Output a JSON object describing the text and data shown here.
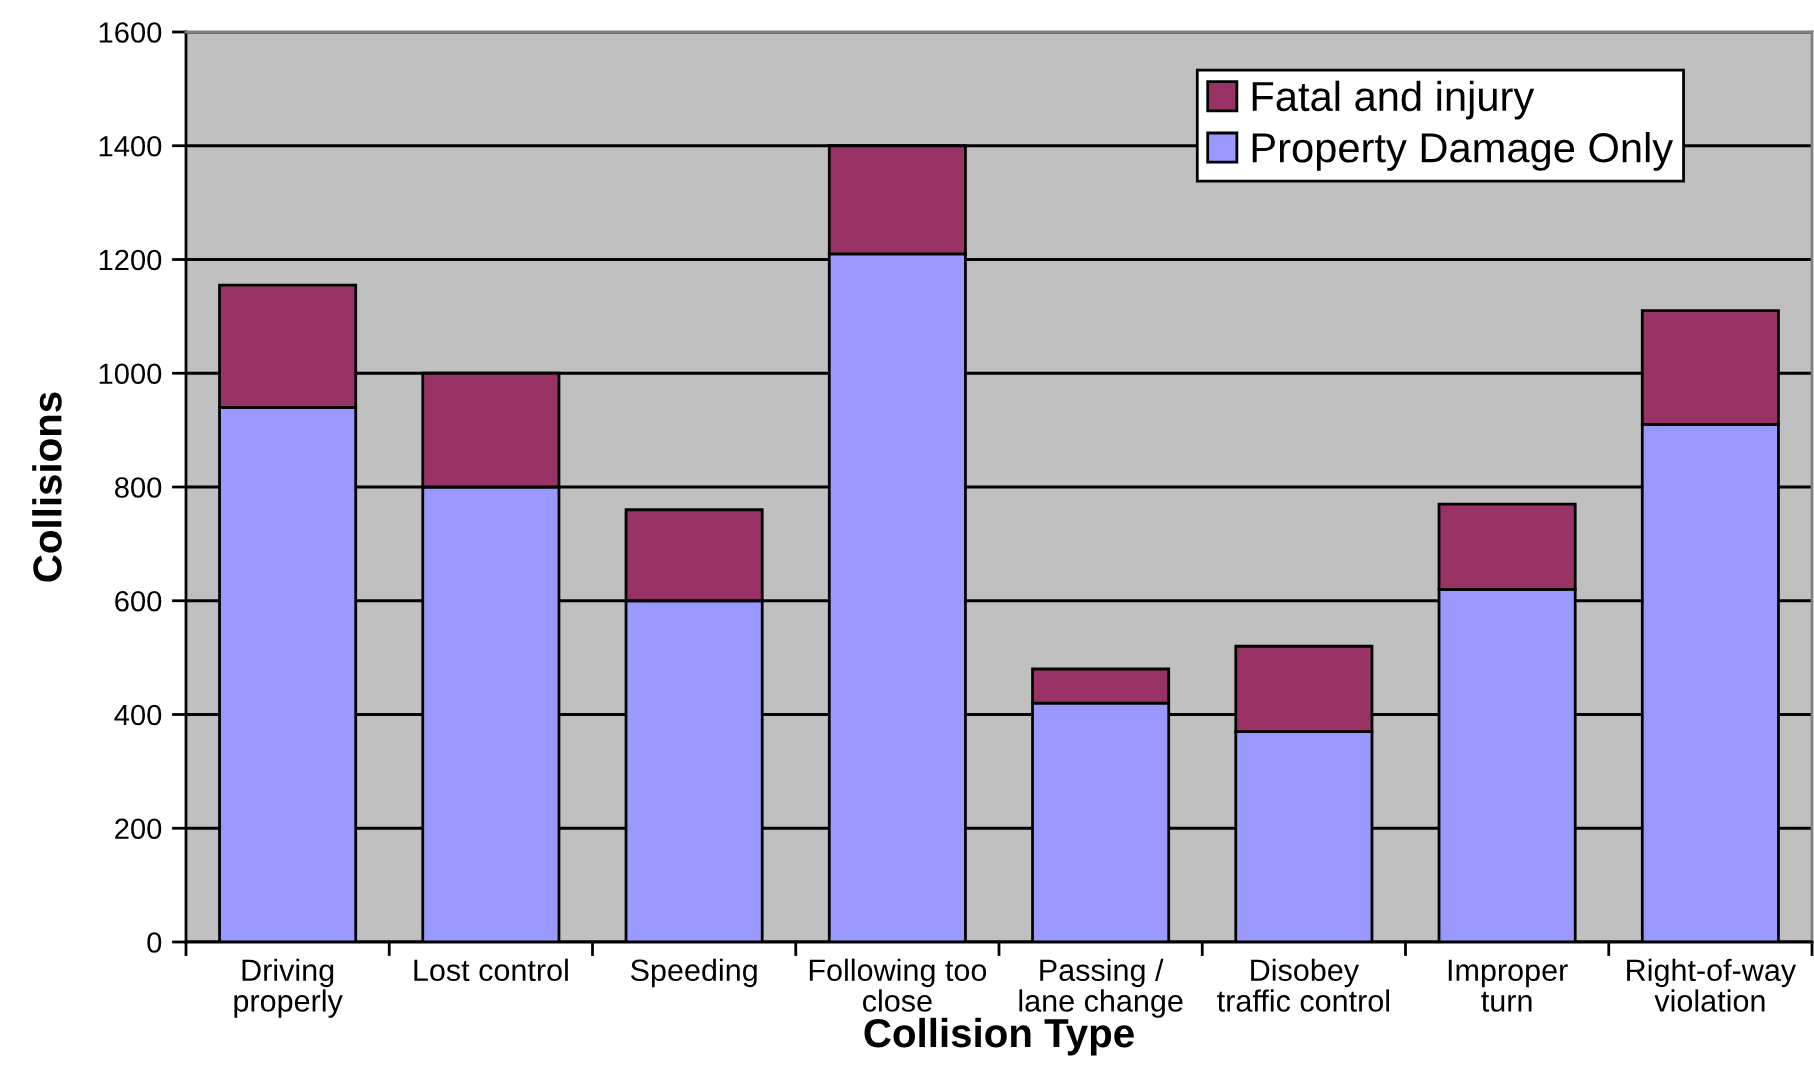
{
  "chart_data": {
    "type": "bar",
    "stacked": true,
    "xlabel": "Collision Type",
    "ylabel": "Collisions",
    "categories": [
      "Driving\nproperly",
      "Lost control",
      "Speeding",
      "Following too\nclose",
      "Passing /\nlane change",
      "Disobey\ntraffic control",
      "Improper\nturn",
      "Right-of-way\nviolation"
    ],
    "series": [
      {
        "name": "Property Damage Only",
        "color": "#9999ff",
        "values": [
          940,
          800,
          600,
          1210,
          420,
          370,
          620,
          910
        ]
      },
      {
        "name": "Fatal and injury",
        "color": "#993366",
        "values": [
          215,
          200,
          160,
          190,
          60,
          150,
          150,
          200
        ]
      }
    ],
    "ylim": [
      0,
      1600
    ],
    "yticks": [
      0,
      200,
      400,
      600,
      800,
      1000,
      1200,
      1400,
      1600
    ],
    "grid": "y",
    "legend": "top right"
  }
}
